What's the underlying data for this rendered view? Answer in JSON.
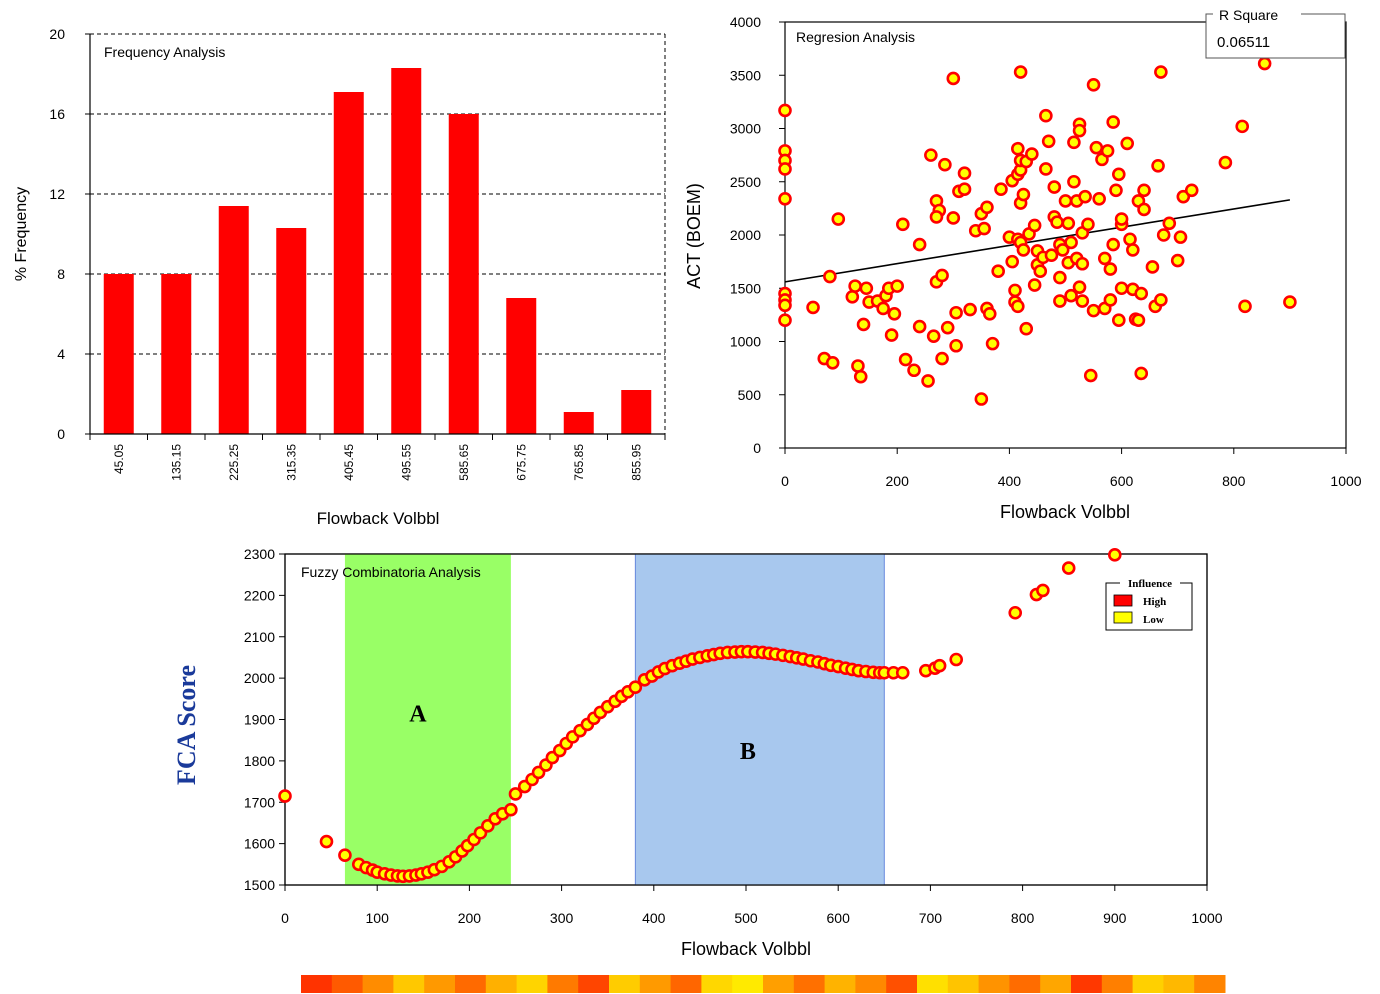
{
  "chart_data": [
    {
      "type": "bar",
      "title": "Frequency Analysis",
      "xlabel": "Flowback Volbbl",
      "ylabel": "% Frequency",
      "categories": [
        "45.05",
        "135.15",
        "225.25",
        "315.35",
        "405.45",
        "495.55",
        "585.65",
        "675.75",
        "765.85",
        "855.95"
      ],
      "values": [
        8.0,
        8.0,
        11.4,
        10.3,
        17.1,
        18.3,
        16.0,
        6.8,
        1.1,
        2.2
      ],
      "yticks": [
        "0",
        "4",
        "8",
        "12",
        "16",
        "20"
      ],
      "ylim": [
        0,
        20
      ],
      "grid": "horizontal dashed",
      "bar_color": "#ff0000"
    },
    {
      "type": "scatter",
      "title": "Regresion Analysis",
      "xlabel": "Flowback Volbbl",
      "ylabel": "ACT (BOEM)",
      "xlim": [
        0,
        1000
      ],
      "ylim": [
        0,
        4000
      ],
      "xticks": [
        "0",
        "200",
        "400",
        "600",
        "800",
        "1000"
      ],
      "yticks": [
        "0",
        "500",
        "1000",
        "1500",
        "2000",
        "2500",
        "3000",
        "3500",
        "4000"
      ],
      "r_square_label": "R Square",
      "r_square_value": "0.06511",
      "trendline": {
        "x": [
          0,
          900
        ],
        "y": [
          1560,
          2330
        ]
      },
      "marker_fill": "#ffff00",
      "marker_edge": "#ff0000",
      "points": [
        [
          0,
          3170
        ],
        [
          0,
          2790
        ],
        [
          0,
          2700
        ],
        [
          0,
          2620
        ],
        [
          0,
          2340
        ],
        [
          0,
          1450
        ],
        [
          0,
          1390
        ],
        [
          0,
          1340
        ],
        [
          0,
          1200
        ],
        [
          50,
          1320
        ],
        [
          70,
          840
        ],
        [
          80,
          1610
        ],
        [
          85,
          800
        ],
        [
          95,
          2150
        ],
        [
          120,
          1420
        ],
        [
          125,
          1520
        ],
        [
          130,
          770
        ],
        [
          135,
          670
        ],
        [
          140,
          1160
        ],
        [
          145,
          1500
        ],
        [
          150,
          1370
        ],
        [
          165,
          1380
        ],
        [
          175,
          1310
        ],
        [
          180,
          1430
        ],
        [
          185,
          1500
        ],
        [
          190,
          1060
        ],
        [
          195,
          1260
        ],
        [
          200,
          1520
        ],
        [
          210,
          2100
        ],
        [
          215,
          830
        ],
        [
          230,
          730
        ],
        [
          240,
          1140
        ],
        [
          240,
          1910
        ],
        [
          255,
          630
        ],
        [
          260,
          2750
        ],
        [
          265,
          1050
        ],
        [
          270,
          1560
        ],
        [
          270,
          2320
        ],
        [
          275,
          2230
        ],
        [
          270,
          2170
        ],
        [
          280,
          1620
        ],
        [
          280,
          840
        ],
        [
          285,
          2660
        ],
        [
          290,
          1130
        ],
        [
          300,
          2160
        ],
        [
          300,
          3470
        ],
        [
          305,
          1270
        ],
        [
          305,
          960
        ],
        [
          310,
          2410
        ],
        [
          320,
          2580
        ],
        [
          320,
          2430
        ],
        [
          330,
          1300
        ],
        [
          340,
          2040
        ],
        [
          350,
          2200
        ],
        [
          355,
          2060
        ],
        [
          360,
          1310
        ],
        [
          360,
          2260
        ],
        [
          365,
          1260
        ],
        [
          350,
          460
        ],
        [
          370,
          980
        ],
        [
          380,
          1660
        ],
        [
          385,
          2430
        ],
        [
          400,
          1980
        ],
        [
          405,
          2510
        ],
        [
          405,
          1750
        ],
        [
          410,
          1480
        ],
        [
          410,
          1370
        ],
        [
          415,
          2570
        ],
        [
          415,
          1330
        ],
        [
          420,
          3530
        ],
        [
          415,
          2810
        ],
        [
          420,
          2610
        ],
        [
          415,
          1960
        ],
        [
          420,
          2700
        ],
        [
          420,
          1930
        ],
        [
          420,
          2300
        ],
        [
          425,
          2380
        ],
        [
          425,
          1860
        ],
        [
          430,
          1120
        ],
        [
          430,
          2690
        ],
        [
          435,
          2010
        ],
        [
          440,
          2760
        ],
        [
          445,
          2090
        ],
        [
          445,
          1530
        ],
        [
          450,
          1720
        ],
        [
          450,
          1850
        ],
        [
          455,
          1660
        ],
        [
          460,
          1790
        ],
        [
          465,
          2620
        ],
        [
          465,
          3120
        ],
        [
          470,
          2880
        ],
        [
          475,
          1810
        ],
        [
          480,
          2450
        ],
        [
          480,
          2170
        ],
        [
          485,
          2120
        ],
        [
          490,
          1910
        ],
        [
          490,
          1380
        ],
        [
          490,
          1600
        ],
        [
          495,
          1860
        ],
        [
          500,
          2320
        ],
        [
          505,
          2110
        ],
        [
          505,
          1740
        ],
        [
          510,
          1430
        ],
        [
          510,
          1930
        ],
        [
          515,
          2870
        ],
        [
          515,
          2500
        ],
        [
          520,
          1780
        ],
        [
          520,
          2320
        ],
        [
          525,
          3040
        ],
        [
          525,
          2980
        ],
        [
          525,
          1510
        ],
        [
          530,
          1730
        ],
        [
          530,
          2020
        ],
        [
          530,
          1380
        ],
        [
          535,
          2360
        ],
        [
          540,
          2100
        ],
        [
          545,
          680
        ],
        [
          550,
          3410
        ],
        [
          550,
          1290
        ],
        [
          555,
          2820
        ],
        [
          560,
          2340
        ],
        [
          565,
          2710
        ],
        [
          570,
          1780
        ],
        [
          570,
          1310
        ],
        [
          575,
          2790
        ],
        [
          580,
          1680
        ],
        [
          580,
          1390
        ],
        [
          585,
          3060
        ],
        [
          585,
          1910
        ],
        [
          590,
          2420
        ],
        [
          595,
          1200
        ],
        [
          595,
          2570
        ],
        [
          600,
          2100
        ],
        [
          600,
          1500
        ],
        [
          600,
          2150
        ],
        [
          610,
          2860
        ],
        [
          615,
          1960
        ],
        [
          620,
          1860
        ],
        [
          620,
          1490
        ],
        [
          625,
          1210
        ],
        [
          630,
          1200
        ],
        [
          630,
          2320
        ],
        [
          635,
          1450
        ],
        [
          635,
          700
        ],
        [
          640,
          2240
        ],
        [
          640,
          2420
        ],
        [
          655,
          1700
        ],
        [
          660,
          1330
        ],
        [
          665,
          2650
        ],
        [
          670,
          3530
        ],
        [
          670,
          1390
        ],
        [
          675,
          2000
        ],
        [
          685,
          2110
        ],
        [
          700,
          1760
        ],
        [
          705,
          1980
        ],
        [
          710,
          2360
        ],
        [
          725,
          2420
        ],
        [
          785,
          2680
        ],
        [
          815,
          3020
        ],
        [
          820,
          1330
        ],
        [
          855,
          3610
        ],
        [
          900,
          1370
        ]
      ]
    },
    {
      "type": "scatter",
      "title": "Fuzzy Combinatoria Analysis",
      "xlabel": "Flowback Volbbl",
      "ylabel": "FCA Score",
      "xlim": [
        0,
        1000
      ],
      "ylim": [
        1500,
        2300
      ],
      "xticks": [
        "0",
        "100",
        "200",
        "300",
        "400",
        "500",
        "600",
        "700",
        "800",
        "900",
        "1000"
      ],
      "yticks": [
        "1500",
        "1600",
        "1700",
        "1800",
        "1900",
        "2000",
        "2100",
        "2200",
        "2300"
      ],
      "regions": [
        {
          "label": "A",
          "x0": 65,
          "x1": 245,
          "color": "#99ff66"
        },
        {
          "label": "B",
          "x0": 380,
          "x1": 650,
          "color": "#a8c8ee"
        }
      ],
      "legend": {
        "title": "Influence",
        "items": [
          {
            "label": "High",
            "color": "#ff0000"
          },
          {
            "label": "Low",
            "color": "#ffff00"
          }
        ]
      },
      "marker_fill": "#ffff00",
      "marker_edge": "#ff0000",
      "points": [
        [
          0,
          1715
        ],
        [
          45,
          1605
        ],
        [
          65,
          1572
        ],
        [
          80,
          1550
        ],
        [
          88,
          1542
        ],
        [
          95,
          1536
        ],
        [
          100,
          1531
        ],
        [
          108,
          1527
        ],
        [
          115,
          1524
        ],
        [
          122,
          1522
        ],
        [
          128,
          1521
        ],
        [
          135,
          1522
        ],
        [
          142,
          1524
        ],
        [
          148,
          1527
        ],
        [
          155,
          1531
        ],
        [
          162,
          1537
        ],
        [
          170,
          1545
        ],
        [
          178,
          1556
        ],
        [
          185,
          1568
        ],
        [
          192,
          1582
        ],
        [
          198,
          1595
        ],
        [
          205,
          1610
        ],
        [
          212,
          1626
        ],
        [
          220,
          1643
        ],
        [
          228,
          1660
        ],
        [
          236,
          1672
        ],
        [
          245,
          1682
        ],
        [
          250,
          1720
        ],
        [
          260,
          1738
        ],
        [
          268,
          1755
        ],
        [
          275,
          1772
        ],
        [
          283,
          1790
        ],
        [
          290,
          1808
        ],
        [
          298,
          1825
        ],
        [
          305,
          1842
        ],
        [
          312,
          1858
        ],
        [
          320,
          1873
        ],
        [
          328,
          1888
        ],
        [
          335,
          1903
        ],
        [
          342,
          1917
        ],
        [
          350,
          1931
        ],
        [
          358,
          1944
        ],
        [
          365,
          1956
        ],
        [
          372,
          1967
        ],
        [
          380,
          1978
        ],
        [
          390,
          1996
        ],
        [
          398,
          2005
        ],
        [
          405,
          2015
        ],
        [
          412,
          2023
        ],
        [
          420,
          2030
        ],
        [
          428,
          2036
        ],
        [
          435,
          2041
        ],
        [
          442,
          2046
        ],
        [
          450,
          2050
        ],
        [
          458,
          2054
        ],
        [
          465,
          2057
        ],
        [
          472,
          2060
        ],
        [
          480,
          2062
        ],
        [
          488,
          2063
        ],
        [
          495,
          2064
        ],
        [
          502,
          2064
        ],
        [
          510,
          2063
        ],
        [
          518,
          2062
        ],
        [
          525,
          2060
        ],
        [
          532,
          2058
        ],
        [
          540,
          2055
        ],
        [
          548,
          2052
        ],
        [
          555,
          2049
        ],
        [
          562,
          2046
        ],
        [
          570,
          2042
        ],
        [
          578,
          2039
        ],
        [
          585,
          2035
        ],
        [
          592,
          2031
        ],
        [
          600,
          2028
        ],
        [
          608,
          2024
        ],
        [
          615,
          2021
        ],
        [
          622,
          2018
        ],
        [
          630,
          2016
        ],
        [
          638,
          2014
        ],
        [
          645,
          2013
        ],
        [
          650,
          2013
        ],
        [
          660,
          2013
        ],
        [
          670,
          2013
        ],
        [
          695,
          2018
        ],
        [
          705,
          2024
        ],
        [
          710,
          2030
        ],
        [
          728,
          2045
        ],
        [
          792,
          2158
        ],
        [
          815,
          2202
        ],
        [
          822,
          2212
        ],
        [
          850,
          2266
        ],
        [
          900,
          2298
        ]
      ]
    }
  ],
  "color_bar": {
    "segments": [
      "#ff3300",
      "#ff5a00",
      "#ff8c00",
      "#ffc800",
      "#ff9900",
      "#ff6a00",
      "#ffb000",
      "#ffd400",
      "#ff7a00",
      "#ff4500",
      "#ffcc00",
      "#ff9a00",
      "#ff6600",
      "#ffd700",
      "#ffea00",
      "#ff9f00",
      "#ff7000",
      "#ffb300",
      "#ff8800",
      "#ff5000",
      "#ffe000",
      "#ffc400",
      "#ff9300",
      "#ff6c00",
      "#ffa600",
      "#ff3800",
      "#ff7f00",
      "#ffd000",
      "#ffb800",
      "#ff8400"
    ]
  }
}
